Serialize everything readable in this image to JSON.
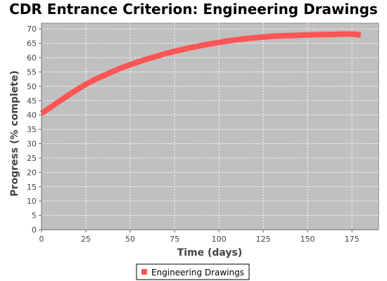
{
  "chart_data": {
    "type": "line",
    "title": "CDR Entrance Criterion: Engineering Drawings",
    "xlabel": "Time (days)",
    "ylabel": "Progress (% complete)",
    "xlim": [
      0,
      190
    ],
    "ylim": [
      0,
      72
    ],
    "x_ticks": [
      0,
      25,
      50,
      75,
      100,
      125,
      150,
      175
    ],
    "y_ticks": [
      0,
      5,
      10,
      15,
      20,
      25,
      30,
      35,
      40,
      45,
      50,
      55,
      60,
      65,
      70
    ],
    "grid": true,
    "legend_position": "bottom",
    "series": [
      {
        "name": "Engineering Drawings",
        "color": "#ff5555",
        "x": [
          0,
          5,
          10,
          15,
          20,
          25,
          30,
          35,
          40,
          45,
          50,
          55,
          60,
          65,
          70,
          75,
          80,
          85,
          90,
          95,
          100,
          105,
          110,
          115,
          120,
          125,
          130,
          135,
          140,
          145,
          150,
          155,
          160,
          165,
          170,
          175,
          180
        ],
        "y": [
          40.5,
          42.6,
          44.8,
          46.8,
          48.8,
          50.7,
          52.3,
          53.7,
          55.1,
          56.4,
          57.5,
          58.6,
          59.6,
          60.5,
          61.4,
          62.2,
          62.9,
          63.6,
          64.2,
          64.8,
          65.3,
          65.8,
          66.2,
          66.6,
          66.9,
          67.2,
          67.4,
          67.6,
          67.7,
          67.8,
          67.9,
          68.0,
          68.0,
          68.1,
          68.2,
          68.2,
          67.9
        ]
      }
    ]
  },
  "colors": {
    "plot_background": "#c0c0c0",
    "grid": "#ffffff",
    "axis": "#666666"
  }
}
